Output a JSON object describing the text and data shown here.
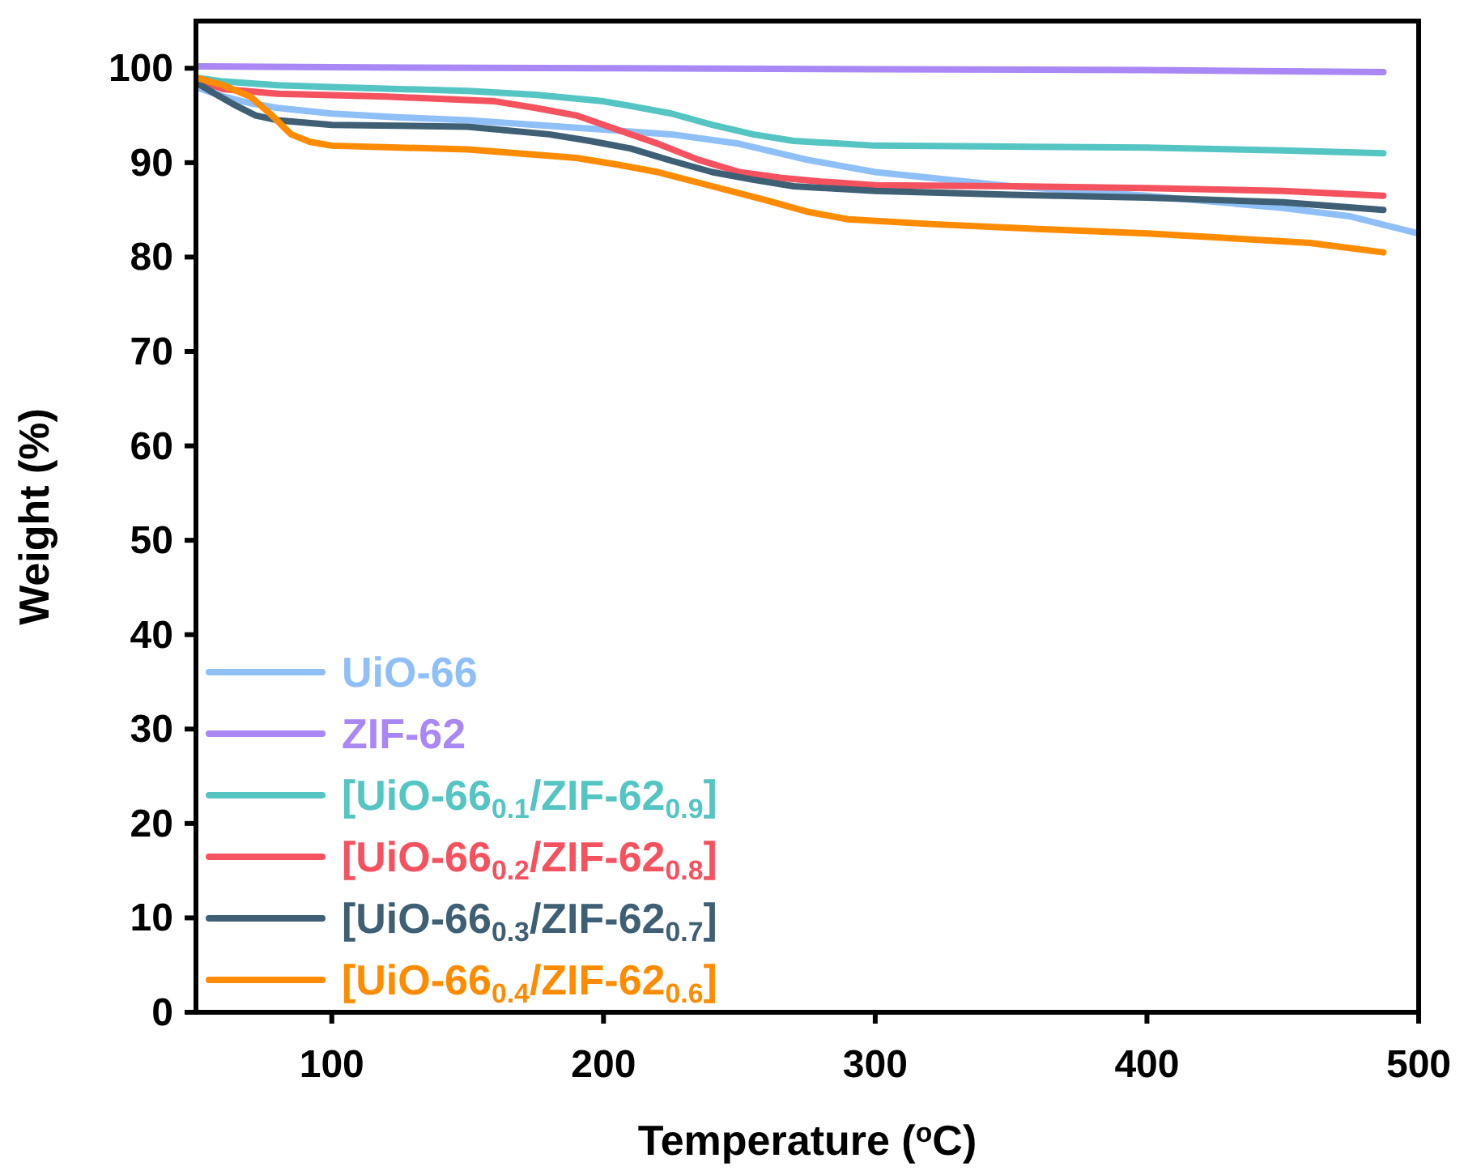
{
  "chart_data": {
    "type": "line",
    "xlabel": "Temperature ($^{o}$C)",
    "ylabel": "Weight (%)",
    "xlim": [
      50,
      500
    ],
    "ylim": [
      0,
      105
    ],
    "xticks": [
      100,
      200,
      300,
      400,
      500
    ],
    "yticks": [
      0,
      10,
      20,
      30,
      40,
      50,
      60,
      70,
      80,
      90,
      100
    ],
    "legend": "bottom left",
    "grid": false,
    "line_style": "solid",
    "marker": "none",
    "series": [
      {
        "name": "UiO-66",
        "color": "#8fbff7",
        "x": [
          50,
          60,
          70,
          80,
          90,
          100,
          125,
          150,
          175,
          200,
          225,
          250,
          275,
          300,
          350,
          400,
          450,
          475,
          500
        ],
        "values": [
          98,
          97,
          96.3,
          95.8,
          95.5,
          95.2,
          94.8,
          94.5,
          94,
          93.5,
          93,
          92,
          90.3,
          89,
          87.5,
          86.5,
          85.2,
          84.3,
          82.5
        ]
      },
      {
        "name": "ZIF-62",
        "color": "#a987f5",
        "x": [
          50,
          100,
          200,
          300,
          400,
          487
        ],
        "values": [
          100.2,
          100.1,
          100,
          99.9,
          99.8,
          99.6
        ]
      },
      {
        "name": "[UiO-66$_{0.1}$/ZIF-62$_{0.9}$]",
        "color": "#55c5c3",
        "x": [
          50,
          60,
          80,
          100,
          150,
          175,
          200,
          210,
          225,
          240,
          255,
          270,
          300,
          350,
          400,
          450,
          487
        ],
        "values": [
          99,
          98.6,
          98.2,
          98,
          97.6,
          97.2,
          96.5,
          96,
          95.2,
          94,
          93,
          92.3,
          91.8,
          91.7,
          91.6,
          91.3,
          91
        ]
      },
      {
        "name": "[UiO-66$_{0.2}$/ZIF-62$_{0.8}$]",
        "color": "#f5525f",
        "x": [
          50,
          60,
          80,
          120,
          160,
          175,
          190,
          205,
          220,
          235,
          250,
          265,
          280,
          300,
          350,
          400,
          450,
          487
        ],
        "values": [
          98.8,
          97.8,
          97.3,
          97,
          96.5,
          95.8,
          95,
          93.5,
          92,
          90.3,
          89,
          88.4,
          88,
          87.6,
          87.5,
          87.3,
          87,
          86.5
        ]
      },
      {
        "name": "[UiO-66$_{0.3}$/ZIF-62$_{0.7}$]",
        "color": "#3f5f75",
        "x": [
          50,
          57,
          65,
          72,
          80,
          100,
          150,
          180,
          195,
          210,
          225,
          240,
          255,
          270,
          300,
          350,
          400,
          450,
          487
        ],
        "values": [
          98.5,
          97.3,
          96,
          95,
          94.5,
          94,
          93.8,
          93,
          92.3,
          91.5,
          90.2,
          89,
          88.2,
          87.5,
          87,
          86.6,
          86.3,
          85.8,
          85
        ]
      },
      {
        "name": "[UiO-66$_{0.4}$/ZIF-62$_{0.6}$]",
        "color": "#ff8c00",
        "x": [
          50,
          60,
          70,
          78,
          85,
          92,
          100,
          150,
          190,
          205,
          220,
          240,
          260,
          275,
          290,
          320,
          350,
          400,
          430,
          460,
          487
        ],
        "values": [
          99,
          98.2,
          97,
          95,
          93,
          92.2,
          91.8,
          91.4,
          90.5,
          89.8,
          89,
          87.5,
          86,
          84.8,
          84,
          83.5,
          83.1,
          82.5,
          82,
          81.5,
          80.5
        ]
      }
    ]
  }
}
